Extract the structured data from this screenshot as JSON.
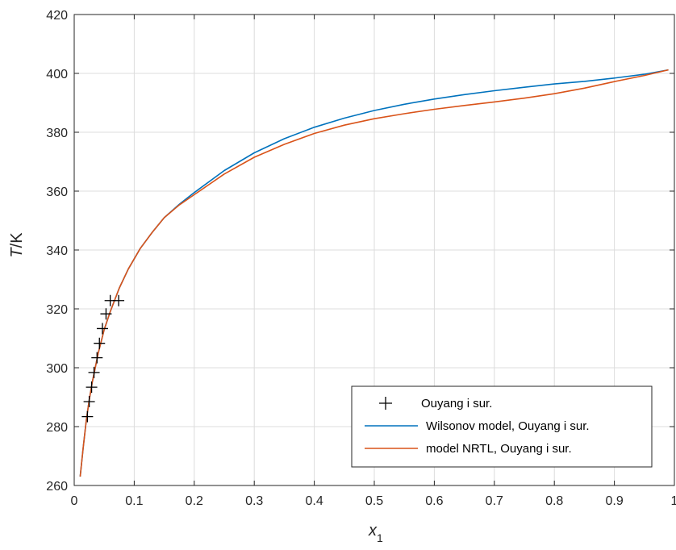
{
  "chart_data": {
    "type": "line",
    "title": "",
    "xlabel": {
      "main": "x",
      "sub": "1"
    },
    "ylabel": {
      "italic": "T",
      "rest": "/K"
    },
    "xlim": [
      0,
      1
    ],
    "ylim": [
      260,
      420
    ],
    "xticks": [
      0,
      0.1,
      0.2,
      0.3,
      0.4,
      0.5,
      0.6,
      0.7,
      0.8,
      0.9,
      1
    ],
    "xtick_labels": [
      "0",
      "0.1",
      "0.2",
      "0.3",
      "0.4",
      "0.5",
      "0.6",
      "0.7",
      "0.8",
      "0.9",
      "1"
    ],
    "yticks": [
      260,
      280,
      300,
      320,
      340,
      360,
      380,
      400,
      420
    ],
    "ytick_labels": [
      "260",
      "280",
      "300",
      "320",
      "340",
      "360",
      "380",
      "400",
      "420"
    ],
    "grid": true,
    "legend_position": "bottom-right",
    "series": [
      {
        "name": "Ouyang i sur.",
        "kind": "marker",
        "marker": "+",
        "color": "#000000",
        "x": [
          0.022,
          0.025,
          0.029,
          0.033,
          0.038,
          0.042,
          0.047,
          0.053,
          0.06,
          0.074
        ],
        "y": [
          283.4,
          288.5,
          293.4,
          298.4,
          303.4,
          308.3,
          313.3,
          318.3,
          322.8,
          322.8
        ]
      },
      {
        "name": "Wilsonov model, Ouyang i sur.",
        "kind": "line",
        "color": "#0072BD",
        "x": [
          0.01,
          0.015,
          0.02,
          0.025,
          0.03,
          0.04,
          0.05,
          0.06,
          0.075,
          0.09,
          0.11,
          0.13,
          0.15,
          0.175,
          0.2,
          0.25,
          0.3,
          0.35,
          0.4,
          0.45,
          0.5,
          0.55,
          0.6,
          0.65,
          0.7,
          0.75,
          0.8,
          0.85,
          0.9,
          0.95,
          0.99
        ],
        "y": [
          263.0,
          273.0,
          282.0,
          289.0,
          295.0,
          305.0,
          313.0,
          319.0,
          327.0,
          333.5,
          340.5,
          346.0,
          351.0,
          355.5,
          359.5,
          367.0,
          373.0,
          377.8,
          381.7,
          384.8,
          387.4,
          389.5,
          391.3,
          392.8,
          394.1,
          395.3,
          396.4,
          397.3,
          398.4,
          399.7,
          401.2
        ]
      },
      {
        "name": "model NRTL, Ouyang i sur.",
        "kind": "line",
        "color": "#D95319",
        "x": [
          0.01,
          0.015,
          0.02,
          0.025,
          0.03,
          0.04,
          0.05,
          0.06,
          0.075,
          0.09,
          0.11,
          0.13,
          0.15,
          0.175,
          0.2,
          0.25,
          0.3,
          0.35,
          0.4,
          0.45,
          0.5,
          0.55,
          0.6,
          0.65,
          0.7,
          0.75,
          0.8,
          0.85,
          0.9,
          0.95,
          0.99
        ],
        "y": [
          263.0,
          273.0,
          282.0,
          289.0,
          295.0,
          305.0,
          313.0,
          319.0,
          327.0,
          333.5,
          340.5,
          346.0,
          351.0,
          355.3,
          358.8,
          365.8,
          371.5,
          375.9,
          379.6,
          382.4,
          384.6,
          386.3,
          387.8,
          389.1,
          390.3,
          391.6,
          393.1,
          395.0,
          397.2,
          399.3,
          401.2
        ]
      }
    ]
  }
}
